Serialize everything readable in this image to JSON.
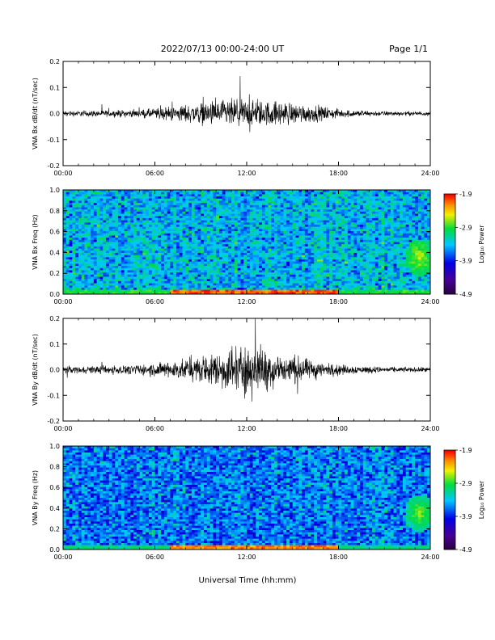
{
  "header": {
    "title": "2022/07/13  00:00-24:00 UT",
    "page": "Page 1/1"
  },
  "xlabel": "Universal Time (hh:mm)",
  "chart_data": [
    {
      "type": "line",
      "ylabel": "VNA Bx dB/dt (nT/sec)",
      "xlim": [
        0,
        24
      ],
      "ylim": [
        -0.2,
        0.2
      ],
      "xticks": [
        "00:00",
        "06:00",
        "12:00",
        "18:00",
        "24:00"
      ],
      "yticks": [
        "0.2",
        "0.1",
        "0.0",
        "-0.1",
        "-0.2"
      ],
      "yticks_values": [
        0.2,
        0.1,
        0.0,
        -0.1,
        -0.2
      ],
      "series": [
        {
          "x": [
            0,
            1,
            2,
            3,
            4,
            5,
            6,
            7,
            8,
            9,
            10,
            11,
            12,
            13,
            14,
            15,
            16,
            17,
            18,
            19,
            20,
            21,
            22,
            23,
            24
          ],
          "amplitude": [
            0.008,
            0.008,
            0.009,
            0.009,
            0.01,
            0.01,
            0.015,
            0.02,
            0.025,
            0.03,
            0.035,
            0.04,
            0.04,
            0.035,
            0.035,
            0.03,
            0.025,
            0.02,
            0.012,
            0.01,
            0.008,
            0.007,
            0.006,
            0.006,
            0.006
          ]
        }
      ]
    },
    {
      "type": "heatmap",
      "ylabel": "VNA Bx Freq (Hz)",
      "xlim": [
        0,
        24
      ],
      "ylim": [
        0.0,
        1.0
      ],
      "xticks": [
        "00:00",
        "06:00",
        "12:00",
        "18:00",
        "24:00"
      ],
      "yticks": [
        "1.0",
        "0.8",
        "0.6",
        "0.4",
        "0.2",
        "0.0"
      ],
      "yticks_values": [
        1.0,
        0.8,
        0.6,
        0.4,
        0.2,
        0.0
      ],
      "colorbar": {
        "label": "Log₁₀ Power",
        "range": [
          -4.9,
          -1.9
        ],
        "ticks": [
          "-1.9",
          "-2.9",
          "-3.9",
          "-4.9"
        ],
        "ticks_values": [
          -1.9,
          -2.9,
          -3.9,
          -4.9
        ]
      },
      "typical_background": -3.4,
      "low_freq_band": {
        "freq_max": 0.05,
        "value": -2.1,
        "time_range": [
          7,
          18
        ]
      },
      "hotspot": {
        "time": 23.3,
        "freq": 0.35,
        "value": -2.6
      }
    },
    {
      "type": "line",
      "ylabel": "VNA By dB/dt (nT/sec)",
      "xlim": [
        0,
        24
      ],
      "ylim": [
        -0.2,
        0.2
      ],
      "xticks": [
        "00:00",
        "06:00",
        "12:00",
        "18:00",
        "24:00"
      ],
      "yticks": [
        "0.2",
        "0.1",
        "0.0",
        "-0.1",
        "-0.2"
      ],
      "yticks_values": [
        0.2,
        0.1,
        0.0,
        -0.1,
        -0.2
      ],
      "series": [
        {
          "x": [
            0,
            1,
            2,
            3,
            4,
            5,
            6,
            7,
            8,
            9,
            10,
            11,
            12,
            13,
            14,
            15,
            16,
            17,
            18,
            19,
            20,
            21,
            22,
            23,
            24
          ],
          "amplitude": [
            0.01,
            0.01,
            0.011,
            0.012,
            0.012,
            0.014,
            0.02,
            0.025,
            0.03,
            0.035,
            0.05,
            0.065,
            0.075,
            0.065,
            0.05,
            0.04,
            0.03,
            0.02,
            0.015,
            0.012,
            0.01,
            0.008,
            0.007,
            0.007,
            0.007
          ]
        }
      ]
    },
    {
      "type": "heatmap",
      "ylabel": "VNA By Freq (Hz)",
      "xlim": [
        0,
        24
      ],
      "ylim": [
        0.0,
        1.0
      ],
      "xticks": [
        "00:00",
        "06:00",
        "12:00",
        "18:00",
        "24:00"
      ],
      "yticks": [
        "1.0",
        "0.8",
        "0.6",
        "0.4",
        "0.2",
        "0.0"
      ],
      "yticks_values": [
        1.0,
        0.8,
        0.6,
        0.4,
        0.2,
        0.0
      ],
      "colorbar": {
        "label": "Log₁₀ Power",
        "range": [
          -4.9,
          -1.9
        ],
        "ticks": [
          "-1.9",
          "-2.9",
          "-3.9",
          "-4.9"
        ],
        "ticks_values": [
          -1.9,
          -2.9,
          -3.9,
          -4.9
        ]
      },
      "typical_background": -3.6,
      "low_freq_band": {
        "freq_max": 0.05,
        "value": -2.2,
        "time_range": [
          7,
          18
        ]
      },
      "hotspot": {
        "time": 23.3,
        "freq": 0.35,
        "value": -2.7
      }
    }
  ]
}
